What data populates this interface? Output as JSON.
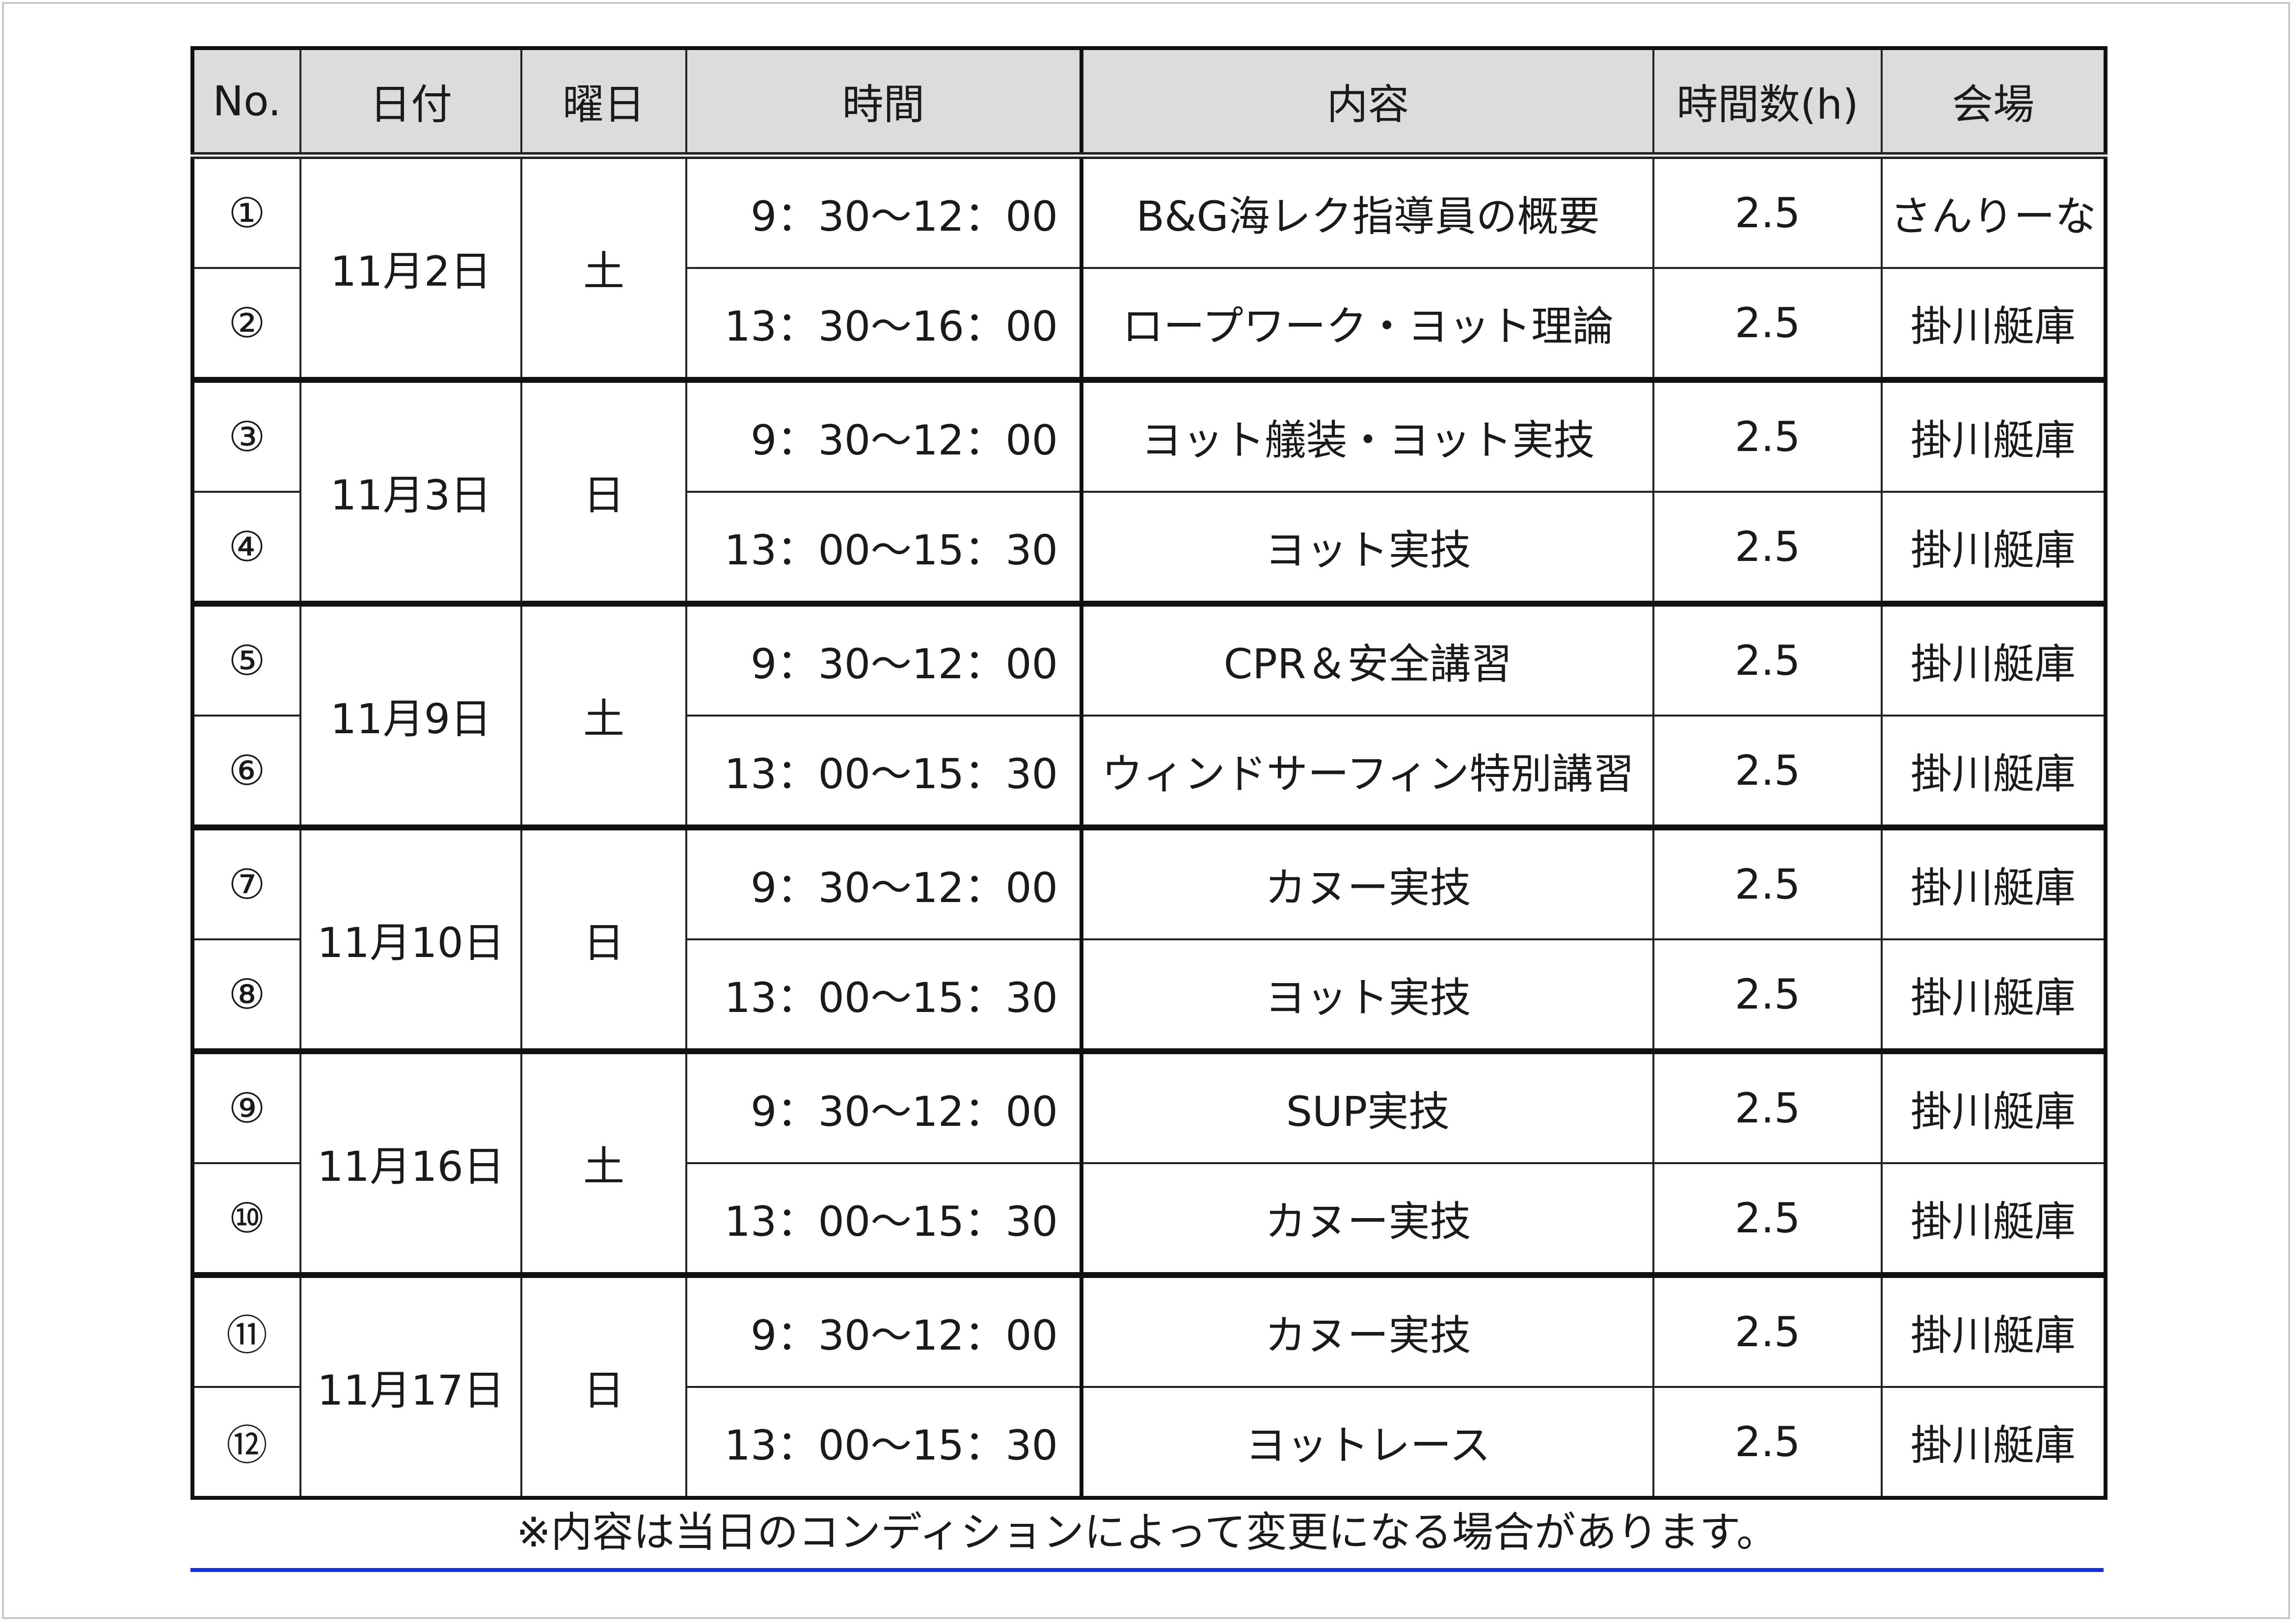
{
  "table": {
    "headers": {
      "no": "No.",
      "date": "日付",
      "weekday": "曜日",
      "time": "時間",
      "content": "内容",
      "hours": "時間数(h)",
      "venue": "会場"
    },
    "groups": [
      {
        "date": "11月2日",
        "weekday": "土",
        "rows": [
          {
            "no": "①",
            "time": "9：30～12：00",
            "content": "B&G海レク指導員の概要",
            "hours": "2.5",
            "venue": "さんりーな"
          },
          {
            "no": "②",
            "time": "13：30～16：00",
            "content": "ロープワーク・ヨット理論",
            "hours": "2.5",
            "venue": "掛川艇庫"
          }
        ]
      },
      {
        "date": "11月3日",
        "weekday": "日",
        "rows": [
          {
            "no": "③",
            "time": "9：30～12：00",
            "content": "ヨット艤装・ヨット実技",
            "hours": "2.5",
            "venue": "掛川艇庫"
          },
          {
            "no": "④",
            "time": "13：00～15：30",
            "content": "ヨット実技",
            "hours": "2.5",
            "venue": "掛川艇庫"
          }
        ]
      },
      {
        "date": "11月9日",
        "weekday": "土",
        "rows": [
          {
            "no": "⑤",
            "time": "9：30～12：00",
            "content": "CPR＆安全講習",
            "hours": "2.5",
            "venue": "掛川艇庫"
          },
          {
            "no": "⑥",
            "time": "13：00～15：30",
            "content": "ウィンドサーフィン特別講習",
            "hours": "2.5",
            "venue": "掛川艇庫"
          }
        ]
      },
      {
        "date": "11月10日",
        "weekday": "日",
        "rows": [
          {
            "no": "⑦",
            "time": "9：30～12：00",
            "content": "カヌー実技",
            "hours": "2.5",
            "venue": "掛川艇庫"
          },
          {
            "no": "⑧",
            "time": "13：00～15：30",
            "content": "ヨット実技",
            "hours": "2.5",
            "venue": "掛川艇庫"
          }
        ]
      },
      {
        "date": "11月16日",
        "weekday": "土",
        "rows": [
          {
            "no": "⑨",
            "time": "9：30～12：00",
            "content": "SUP実技",
            "hours": "2.5",
            "venue": "掛川艇庫"
          },
          {
            "no": "⑩",
            "time": "13：00～15：30",
            "content": "カヌー実技",
            "hours": "2.5",
            "venue": "掛川艇庫"
          }
        ]
      },
      {
        "date": "11月17日",
        "weekday": "日",
        "rows": [
          {
            "no": "⑪",
            "time": "9：30～12：00",
            "content": "カヌー実技",
            "hours": "2.5",
            "venue": "掛川艇庫"
          },
          {
            "no": "⑫",
            "time": "13：00～15：30",
            "content": "ヨットレース",
            "hours": "2.5",
            "venue": "掛川艇庫"
          }
        ]
      }
    ]
  },
  "note": "※内容は当日のコンディションによって変更になる場合があります。",
  "colors": {
    "header_bg": "#dcdcdc",
    "rule_blue": "#1530d8"
  }
}
